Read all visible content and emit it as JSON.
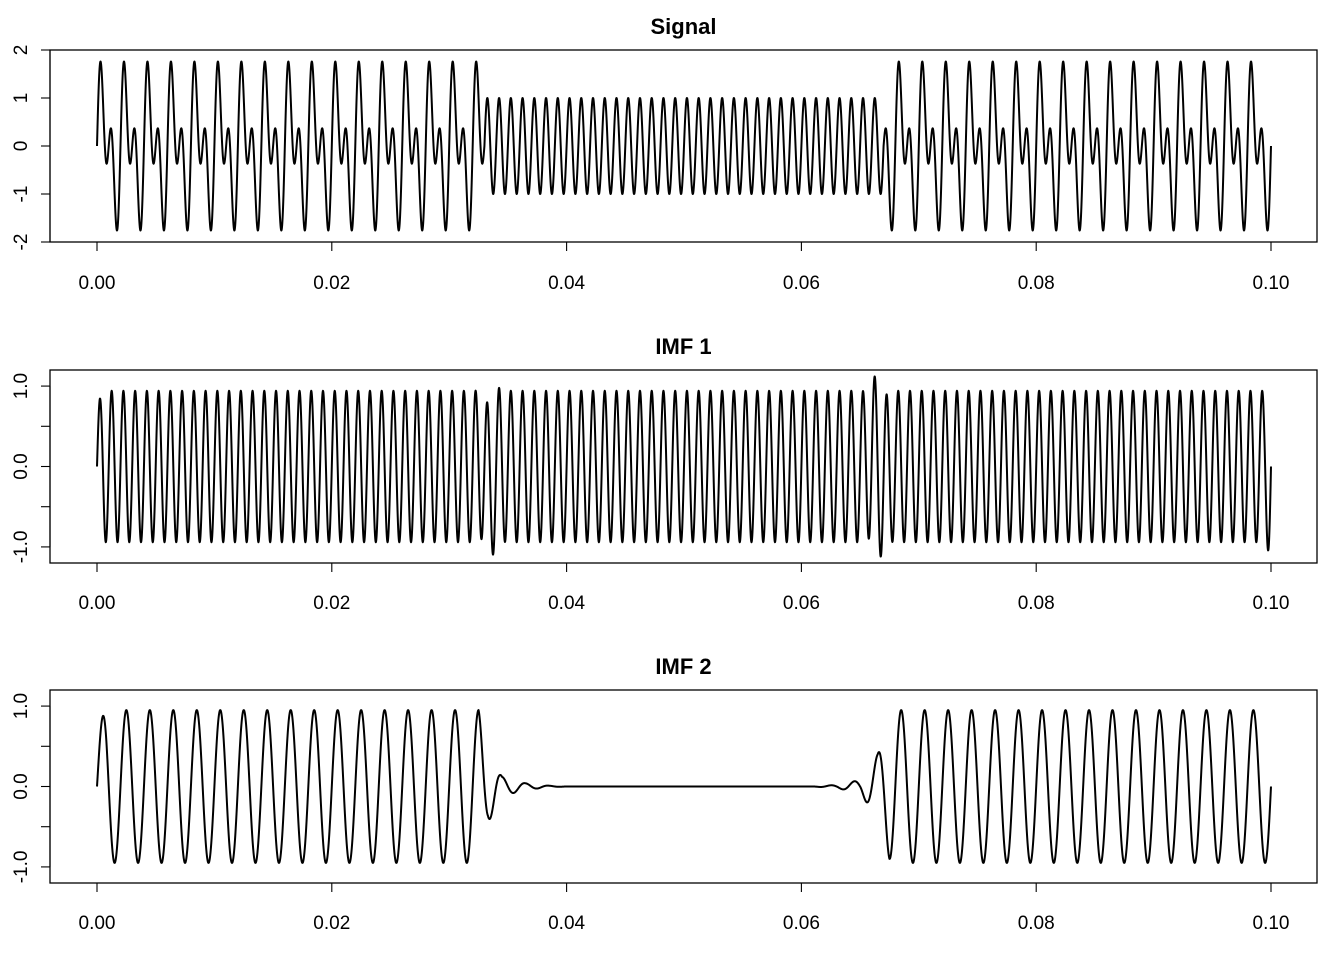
{
  "chart_data": [
    {
      "type": "line",
      "title": "Signal",
      "xlabel": "",
      "ylabel": "",
      "xlim": [
        0,
        0.1
      ],
      "ylim": [
        -2,
        2
      ],
      "x_ticks": [
        "0.00",
        "0.02",
        "0.04",
        "0.06",
        "0.08",
        "0.10"
      ],
      "x_tick_values": [
        0,
        0.02,
        0.04,
        0.06,
        0.08,
        0.1
      ],
      "y_ticks": [
        "-2",
        "-1",
        "0",
        "1",
        "2"
      ],
      "y_tick_values": [
        -2,
        -1,
        0,
        1,
        2
      ],
      "series": [
        {
          "description": "sum of a 1000 Hz unit sine over the whole span and a 500 Hz unit sine present for 0-0.033 and 0.067-0.1",
          "components": [
            {
              "frequency_hz": 1000,
              "amplitude": 1,
              "intervals": [
                [
                  0,
                  0.1
                ]
              ]
            },
            {
              "frequency_hz": 500,
              "amplitude": 1,
              "intervals": [
                [
                  0,
                  0.033
                ],
                [
                  0.067,
                  0.1
                ]
              ]
            }
          ]
        }
      ],
      "grid": false,
      "legend": "none",
      "line_color": "#000000"
    },
    {
      "type": "line",
      "title": "IMF 1",
      "xlabel": "",
      "ylabel": "",
      "xlim": [
        0,
        0.1
      ],
      "ylim": [
        -1.2,
        1.2
      ],
      "x_ticks": [
        "0.00",
        "0.02",
        "0.04",
        "0.06",
        "0.08",
        "0.10"
      ],
      "x_tick_values": [
        0,
        0.02,
        0.04,
        0.06,
        0.08,
        0.1
      ],
      "y_ticks": [
        "-1.0",
        "0.0",
        "1.0"
      ],
      "y_tick_values": [
        -1,
        0,
        1
      ],
      "y_minor_tick_values": [
        -0.5,
        0.5
      ],
      "series": [
        {
          "description": "high-frequency intrinsic mode; ~1000 Hz oscillation of amplitude ~1 across the span, with end effects up to ~1.2",
          "components": [
            {
              "frequency_hz": 1000,
              "amplitude": 1,
              "intervals": [
                [
                  0,
                  0.1
                ]
              ]
            }
          ]
        }
      ],
      "grid": false,
      "legend": "none",
      "line_color": "#000000"
    },
    {
      "type": "line",
      "title": "IMF 2",
      "xlabel": "",
      "ylabel": "",
      "xlim": [
        0,
        0.1
      ],
      "ylim": [
        -1.2,
        1.2
      ],
      "x_ticks": [
        "0.00",
        "0.02",
        "0.04",
        "0.06",
        "0.08",
        "0.10"
      ],
      "x_tick_values": [
        0,
        0.02,
        0.04,
        0.06,
        0.08,
        0.1
      ],
      "y_ticks": [
        "-1.0",
        "0.0",
        "1.0"
      ],
      "y_tick_values": [
        -1,
        0,
        1
      ],
      "y_minor_tick_values": [
        -0.5,
        0.5
      ],
      "series": [
        {
          "description": "lower-frequency intrinsic mode; ~500 Hz oscillation of amplitude ~1 for 0-0.033 and 0.067-0.1, near zero in between with small ringing at the transitions",
          "components": [
            {
              "frequency_hz": 500,
              "amplitude": 1,
              "intervals": [
                [
                  0,
                  0.033
                ],
                [
                  0.067,
                  0.1
                ]
              ]
            }
          ]
        }
      ],
      "grid": false,
      "legend": "none",
      "line_color": "#000000"
    }
  ]
}
